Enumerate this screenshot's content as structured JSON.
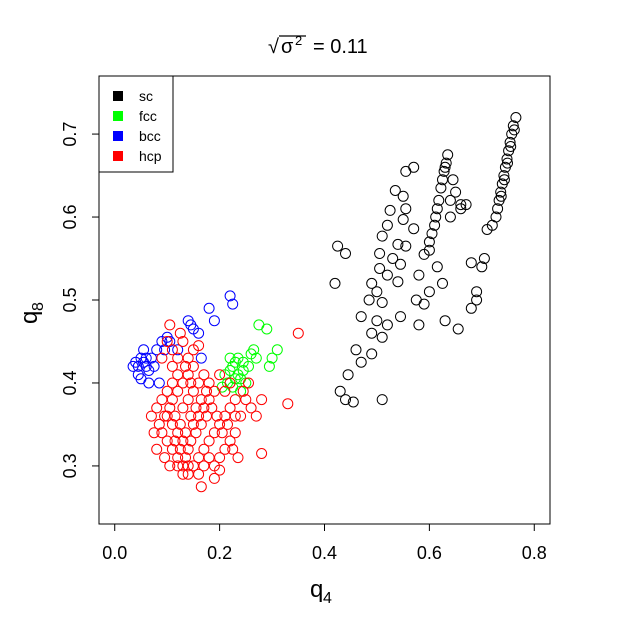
{
  "chart_data": {
    "type": "scatter",
    "title": "√σ² = 0.11",
    "title_parts": {
      "value": "= 0.11"
    },
    "xlabel": "q₄",
    "ylabel": "q₈",
    "xlim": [
      -0.03,
      0.83
    ],
    "ylim": [
      0.23,
      0.77
    ],
    "xticks": [
      0.0,
      0.2,
      0.4,
      0.6,
      0.8
    ],
    "yticks": [
      0.3,
      0.4,
      0.5,
      0.6,
      0.7
    ],
    "xtick_labels": [
      "0.0",
      "0.2",
      "0.4",
      "0.6",
      "0.8"
    ],
    "ytick_labels": [
      "0.3",
      "0.4",
      "0.5",
      "0.6",
      "0.7"
    ],
    "grid": false,
    "legend_position": "top-left",
    "marker": "open-circle",
    "series": [
      {
        "name": "sc",
        "color": "#000000",
        "points": [
          [
            0.765,
            0.72
          ],
          [
            0.76,
            0.71
          ],
          [
            0.757,
            0.7
          ],
          [
            0.754,
            0.69
          ],
          [
            0.751,
            0.68
          ],
          [
            0.748,
            0.67
          ],
          [
            0.745,
            0.66
          ],
          [
            0.742,
            0.65
          ],
          [
            0.739,
            0.64
          ],
          [
            0.736,
            0.63
          ],
          [
            0.733,
            0.62
          ],
          [
            0.73,
            0.61
          ],
          [
            0.727,
            0.6
          ],
          [
            0.72,
            0.59
          ],
          [
            0.71,
            0.585
          ],
          [
            0.762,
            0.705
          ],
          [
            0.755,
            0.685
          ],
          [
            0.749,
            0.665
          ],
          [
            0.743,
            0.645
          ],
          [
            0.737,
            0.625
          ],
          [
            0.635,
            0.675
          ],
          [
            0.632,
            0.665
          ],
          [
            0.628,
            0.655
          ],
          [
            0.625,
            0.645
          ],
          [
            0.622,
            0.635
          ],
          [
            0.618,
            0.62
          ],
          [
            0.615,
            0.61
          ],
          [
            0.612,
            0.6
          ],
          [
            0.61,
            0.59
          ],
          [
            0.605,
            0.58
          ],
          [
            0.645,
            0.645
          ],
          [
            0.65,
            0.63
          ],
          [
            0.66,
            0.615
          ],
          [
            0.64,
            0.62
          ],
          [
            0.63,
            0.66
          ],
          [
            0.57,
            0.66
          ],
          [
            0.555,
            0.655
          ],
          [
            0.535,
            0.632
          ],
          [
            0.55,
            0.625
          ],
          [
            0.555,
            0.61
          ],
          [
            0.525,
            0.608
          ],
          [
            0.52,
            0.59
          ],
          [
            0.55,
            0.597
          ],
          [
            0.57,
            0.586
          ],
          [
            0.51,
            0.577
          ],
          [
            0.54,
            0.567
          ],
          [
            0.555,
            0.565
          ],
          [
            0.505,
            0.556
          ],
          [
            0.53,
            0.55
          ],
          [
            0.545,
            0.543
          ],
          [
            0.505,
            0.538
          ],
          [
            0.52,
            0.53
          ],
          [
            0.54,
            0.522
          ],
          [
            0.49,
            0.52
          ],
          [
            0.5,
            0.51
          ],
          [
            0.51,
            0.497
          ],
          [
            0.545,
            0.48
          ],
          [
            0.485,
            0.5
          ],
          [
            0.5,
            0.475
          ],
          [
            0.52,
            0.47
          ],
          [
            0.47,
            0.48
          ],
          [
            0.49,
            0.46
          ],
          [
            0.51,
            0.455
          ],
          [
            0.49,
            0.435
          ],
          [
            0.46,
            0.44
          ],
          [
            0.47,
            0.425
          ],
          [
            0.445,
            0.41
          ],
          [
            0.425,
            0.565
          ],
          [
            0.44,
            0.556
          ],
          [
            0.42,
            0.52
          ],
          [
            0.43,
            0.39
          ],
          [
            0.44,
            0.38
          ],
          [
            0.455,
            0.377
          ],
          [
            0.51,
            0.38
          ],
          [
            0.6,
            0.56
          ],
          [
            0.615,
            0.54
          ],
          [
            0.625,
            0.52
          ],
          [
            0.6,
            0.51
          ],
          [
            0.575,
            0.5
          ],
          [
            0.59,
            0.495
          ],
          [
            0.63,
            0.475
          ],
          [
            0.58,
            0.47
          ],
          [
            0.655,
            0.465
          ],
          [
            0.69,
            0.5
          ],
          [
            0.68,
            0.49
          ],
          [
            0.7,
            0.54
          ],
          [
            0.705,
            0.55
          ],
          [
            0.68,
            0.545
          ],
          [
            0.69,
            0.51
          ],
          [
            0.66,
            0.61
          ],
          [
            0.67,
            0.615
          ],
          [
            0.64,
            0.6
          ],
          [
            0.6,
            0.57
          ],
          [
            0.59,
            0.555
          ],
          [
            0.58,
            0.53
          ]
        ]
      },
      {
        "name": "fcc",
        "color": "#00ff00",
        "points": [
          [
            0.22,
            0.415
          ],
          [
            0.225,
            0.42
          ],
          [
            0.23,
            0.425
          ],
          [
            0.235,
            0.41
          ],
          [
            0.24,
            0.405
          ],
          [
            0.21,
            0.41
          ],
          [
            0.215,
            0.4
          ],
          [
            0.23,
            0.405
          ],
          [
            0.245,
            0.415
          ],
          [
            0.225,
            0.395
          ],
          [
            0.24,
            0.39
          ],
          [
            0.22,
            0.43
          ],
          [
            0.235,
            0.43
          ],
          [
            0.25,
            0.4
          ],
          [
            0.205,
            0.395
          ],
          [
            0.265,
            0.44
          ],
          [
            0.27,
            0.43
          ],
          [
            0.275,
            0.47
          ],
          [
            0.29,
            0.465
          ],
          [
            0.3,
            0.43
          ],
          [
            0.31,
            0.44
          ],
          [
            0.295,
            0.42
          ],
          [
            0.26,
            0.435
          ],
          [
            0.255,
            0.42
          ],
          [
            0.245,
            0.425
          ]
        ]
      },
      {
        "name": "bcc",
        "color": "#0000ff",
        "points": [
          [
            0.04,
            0.425
          ],
          [
            0.045,
            0.42
          ],
          [
            0.05,
            0.43
          ],
          [
            0.055,
            0.425
          ],
          [
            0.06,
            0.42
          ],
          [
            0.065,
            0.415
          ],
          [
            0.045,
            0.41
          ],
          [
            0.05,
            0.405
          ],
          [
            0.06,
            0.43
          ],
          [
            0.07,
            0.43
          ],
          [
            0.055,
            0.44
          ],
          [
            0.065,
            0.4
          ],
          [
            0.075,
            0.42
          ],
          [
            0.08,
            0.44
          ],
          [
            0.09,
            0.45
          ],
          [
            0.1,
            0.455
          ],
          [
            0.095,
            0.44
          ],
          [
            0.105,
            0.45
          ],
          [
            0.14,
            0.475
          ],
          [
            0.145,
            0.47
          ],
          [
            0.15,
            0.465
          ],
          [
            0.16,
            0.46
          ],
          [
            0.18,
            0.49
          ],
          [
            0.19,
            0.475
          ],
          [
            0.22,
            0.505
          ],
          [
            0.225,
            0.495
          ],
          [
            0.165,
            0.43
          ],
          [
            0.085,
            0.4
          ],
          [
            0.035,
            0.42
          ],
          [
            0.12,
            0.44
          ]
        ]
      },
      {
        "name": "hcp",
        "color": "#ff0000",
        "points": [
          [
            0.1,
            0.36
          ],
          [
            0.11,
            0.35
          ],
          [
            0.12,
            0.34
          ],
          [
            0.13,
            0.33
          ],
          [
            0.14,
            0.32
          ],
          [
            0.09,
            0.34
          ],
          [
            0.1,
            0.33
          ],
          [
            0.11,
            0.32
          ],
          [
            0.12,
            0.31
          ],
          [
            0.13,
            0.3
          ],
          [
            0.14,
            0.29
          ],
          [
            0.15,
            0.3
          ],
          [
            0.16,
            0.31
          ],
          [
            0.17,
            0.32
          ],
          [
            0.18,
            0.33
          ],
          [
            0.19,
            0.34
          ],
          [
            0.2,
            0.35
          ],
          [
            0.21,
            0.36
          ],
          [
            0.22,
            0.37
          ],
          [
            0.23,
            0.38
          ],
          [
            0.15,
            0.35
          ],
          [
            0.16,
            0.36
          ],
          [
            0.17,
            0.37
          ],
          [
            0.18,
            0.38
          ],
          [
            0.19,
            0.39
          ],
          [
            0.13,
            0.37
          ],
          [
            0.14,
            0.38
          ],
          [
            0.15,
            0.39
          ],
          [
            0.16,
            0.4
          ],
          [
            0.17,
            0.41
          ],
          [
            0.11,
            0.38
          ],
          [
            0.12,
            0.39
          ],
          [
            0.13,
            0.4
          ],
          [
            0.14,
            0.41
          ],
          [
            0.15,
            0.42
          ],
          [
            0.08,
            0.37
          ],
          [
            0.09,
            0.38
          ],
          [
            0.1,
            0.39
          ],
          [
            0.11,
            0.4
          ],
          [
            0.12,
            0.41
          ],
          [
            0.085,
            0.35
          ],
          [
            0.095,
            0.36
          ],
          [
            0.105,
            0.37
          ],
          [
            0.115,
            0.36
          ],
          [
            0.125,
            0.35
          ],
          [
            0.135,
            0.34
          ],
          [
            0.145,
            0.33
          ],
          [
            0.155,
            0.34
          ],
          [
            0.165,
            0.35
          ],
          [
            0.175,
            0.36
          ],
          [
            0.12,
            0.3
          ],
          [
            0.13,
            0.29
          ],
          [
            0.14,
            0.3
          ],
          [
            0.16,
            0.29
          ],
          [
            0.17,
            0.3
          ],
          [
            0.18,
            0.31
          ],
          [
            0.19,
            0.3
          ],
          [
            0.2,
            0.31
          ],
          [
            0.21,
            0.32
          ],
          [
            0.22,
            0.33
          ],
          [
            0.23,
            0.34
          ],
          [
            0.24,
            0.36
          ],
          [
            0.25,
            0.38
          ],
          [
            0.26,
            0.37
          ],
          [
            0.27,
            0.36
          ],
          [
            0.28,
            0.38
          ],
          [
            0.09,
            0.43
          ],
          [
            0.1,
            0.45
          ],
          [
            0.12,
            0.43
          ],
          [
            0.13,
            0.45
          ],
          [
            0.15,
            0.44
          ],
          [
            0.16,
            0.445
          ],
          [
            0.11,
            0.42
          ],
          [
            0.14,
            0.43
          ],
          [
            0.165,
            0.275
          ],
          [
            0.28,
            0.315
          ],
          [
            0.33,
            0.375
          ],
          [
            0.35,
            0.46
          ],
          [
            0.245,
            0.39
          ],
          [
            0.255,
            0.4
          ],
          [
            0.18,
            0.4
          ],
          [
            0.2,
            0.41
          ],
          [
            0.21,
            0.39
          ],
          [
            0.22,
            0.4
          ],
          [
            0.23,
            0.36
          ],
          [
            0.07,
            0.36
          ],
          [
            0.075,
            0.34
          ],
          [
            0.08,
            0.32
          ],
          [
            0.095,
            0.31
          ],
          [
            0.105,
            0.3
          ],
          [
            0.115,
            0.33
          ],
          [
            0.125,
            0.32
          ],
          [
            0.135,
            0.31
          ],
          [
            0.145,
            0.36
          ],
          [
            0.155,
            0.37
          ],
          [
            0.165,
            0.38
          ],
          [
            0.175,
            0.39
          ],
          [
            0.185,
            0.37
          ],
          [
            0.195,
            0.36
          ],
          [
            0.205,
            0.34
          ],
          [
            0.215,
            0.35
          ],
          [
            0.225,
            0.32
          ],
          [
            0.235,
            0.31
          ],
          [
            0.19,
            0.285
          ],
          [
            0.2,
            0.295
          ],
          [
            0.11,
            0.44
          ],
          [
            0.125,
            0.46
          ],
          [
            0.105,
            0.47
          ],
          [
            0.135,
            0.42
          ],
          [
            0.145,
            0.4
          ]
        ]
      }
    ]
  }
}
